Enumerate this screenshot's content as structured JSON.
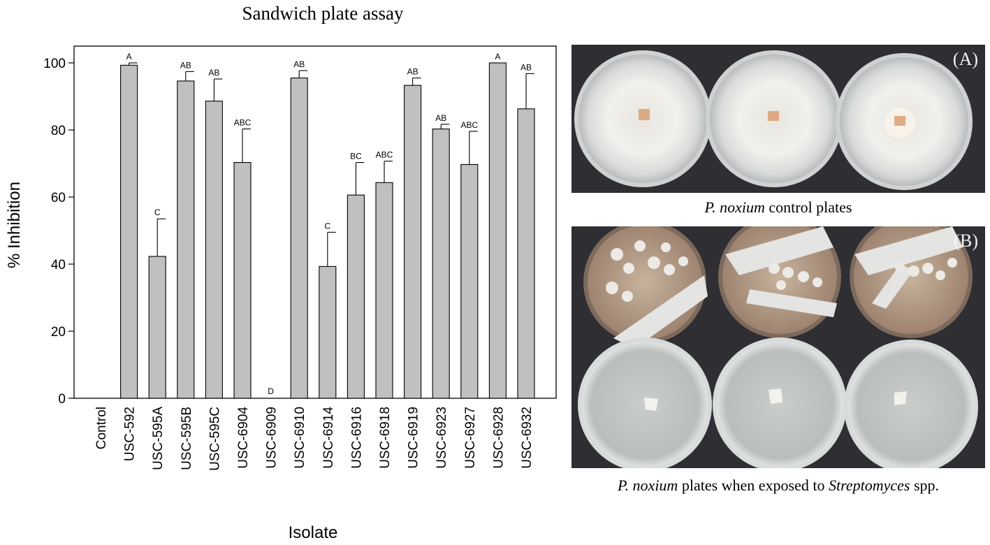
{
  "chart_data": {
    "type": "bar",
    "title": "Sandwich plate assay",
    "xlabel": "Isolate",
    "ylabel": "% Inhibition",
    "ylim": [
      0,
      105
    ],
    "yticks": [
      0,
      20,
      40,
      60,
      80,
      100
    ],
    "categories": [
      "Control",
      "USC-592",
      "USC-595A",
      "USC-595B",
      "USC-595C",
      "USC-6904",
      "USC-6909",
      "USC-6910",
      "USC-6914",
      "USC-6916",
      "USC-6918",
      "USC-6919",
      "USC-6923",
      "USC-6927",
      "USC-6928",
      "USC-6932"
    ],
    "values": [
      0,
      99.3,
      42.3,
      94.6,
      88.6,
      70.3,
      0,
      95.5,
      39.3,
      60.6,
      64.3,
      93.3,
      80.3,
      69.7,
      100,
      86.3
    ],
    "errors": [
      0,
      0.7,
      11.2,
      2.8,
      6.6,
      10.0,
      0,
      2.2,
      10.2,
      9.7,
      6.4,
      2.2,
      1.4,
      9.9,
      0,
      10.5
    ],
    "letters": [
      "",
      "A",
      "C",
      "AB",
      "AB",
      "ABC",
      "D",
      "AB",
      "C",
      "BC",
      "ABC",
      "AB",
      "AB",
      "ABC",
      "A",
      "AB"
    ],
    "bar_color": "#c0c0c0",
    "grid": false
  },
  "panels": {
    "a": {
      "tag": "(A)",
      "caption_species": "P. noxium",
      "caption_rest": " control plates"
    },
    "b": {
      "tag": "(B)",
      "caption_species": "P. noxium",
      "caption_mid": " plates when exposed to ",
      "caption_genus": "Streptomyces",
      "caption_end": " spp."
    }
  }
}
